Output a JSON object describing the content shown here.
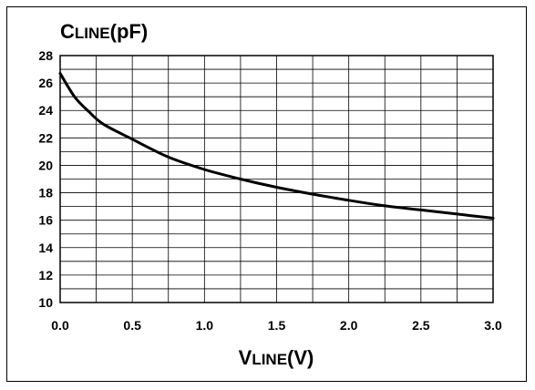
{
  "chart_data": {
    "type": "line",
    "title": "",
    "ylabel": "CLINE(pF)",
    "ylabel_parts": {
      "main": "C",
      "sub": "LINE",
      "unit": "(pF)"
    },
    "xlabel": "VLINE(V)",
    "xlabel_parts": {
      "main": "V",
      "sub": "LINE",
      "unit": "(V)"
    },
    "xlim": [
      0,
      3.0
    ],
    "ylim": [
      10,
      28
    ],
    "x_ticks": [
      "0.0",
      "0.5",
      "1.0",
      "1.5",
      "2.0",
      "2.5",
      "3.0"
    ],
    "x_tick_values": [
      0,
      0.5,
      1.0,
      1.5,
      2.0,
      2.5,
      3.0
    ],
    "y_ticks": [
      "10",
      "12",
      "14",
      "16",
      "18",
      "20",
      "22",
      "24",
      "26",
      "28"
    ],
    "y_tick_values": [
      10,
      12,
      14,
      16,
      18,
      20,
      22,
      24,
      26,
      28
    ],
    "grid": true,
    "x_grid_step": 0.25,
    "y_grid_step": 1,
    "series": [
      {
        "color": "#000000",
        "x": [
          0,
          0.1,
          0.2,
          0.3,
          0.5,
          0.75,
          1.0,
          1.25,
          1.5,
          1.75,
          2.0,
          2.25,
          2.5,
          2.75,
          3.0
        ],
        "y": [
          26.7,
          25.0,
          23.9,
          23.0,
          21.9,
          20.6,
          19.7,
          19.0,
          18.4,
          17.9,
          17.45,
          17.05,
          16.75,
          16.45,
          16.15
        ]
      }
    ]
  }
}
